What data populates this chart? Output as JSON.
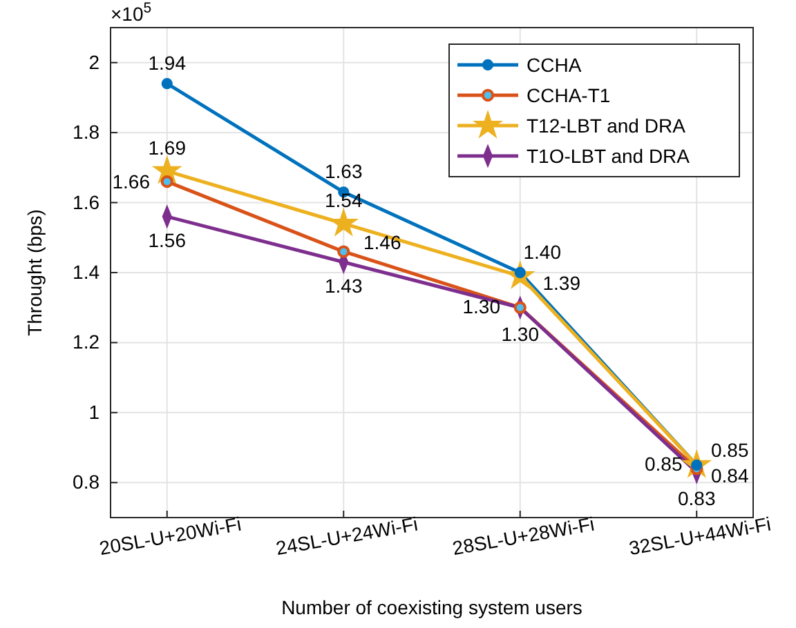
{
  "chart_data": {
    "type": "line",
    "xlabel": "Number of coexisting system users",
    "ylabel": "Throught (bps)",
    "annotations": [
      "×10$^{5}$"
    ],
    "categories": [
      "20SL-U+20Wi-Fi",
      "24SL-U+24Wi-Fi",
      "28SL-U+28Wi-Fi",
      "32SL-U+44Wi-Fi"
    ],
    "series": [
      {
        "name": "CCHA",
        "color": "#0072bd",
        "marker": "circle",
        "values": [
          1.94,
          1.63,
          1.4,
          0.85
        ],
        "value_labels": [
          "1.94",
          "1.63",
          "1.40",
          "0.85"
        ]
      },
      {
        "name": "CCHA-T1",
        "color": "#d95319",
        "marker": "circle",
        "values": [
          1.66,
          1.46,
          1.3,
          0.84
        ],
        "value_labels": [
          "1.66",
          "1.46",
          "1.30",
          "0.84"
        ]
      },
      {
        "name": "T12-LBT and DRA",
        "color": "#edb120",
        "marker": "star",
        "values": [
          1.69,
          1.54,
          1.39,
          0.85
        ],
        "value_labels": [
          "1.69",
          "1.54",
          "1.39",
          "0.85"
        ]
      },
      {
        "name": "T1O-LBT and DRA",
        "color": "#7e2f8e",
        "marker": "diamond",
        "values": [
          1.56,
          1.43,
          1.3,
          0.83
        ],
        "value_labels": [
          "1.56",
          "1.43",
          "1.30",
          "0.83"
        ]
      }
    ],
    "ylim": [
      0.7,
      2.1
    ],
    "yticks": [
      0.8,
      1,
      1.2,
      1.4,
      1.6,
      1.8,
      2
    ],
    "grid": true,
    "legend": "top right",
    "line_style": "solid"
  }
}
